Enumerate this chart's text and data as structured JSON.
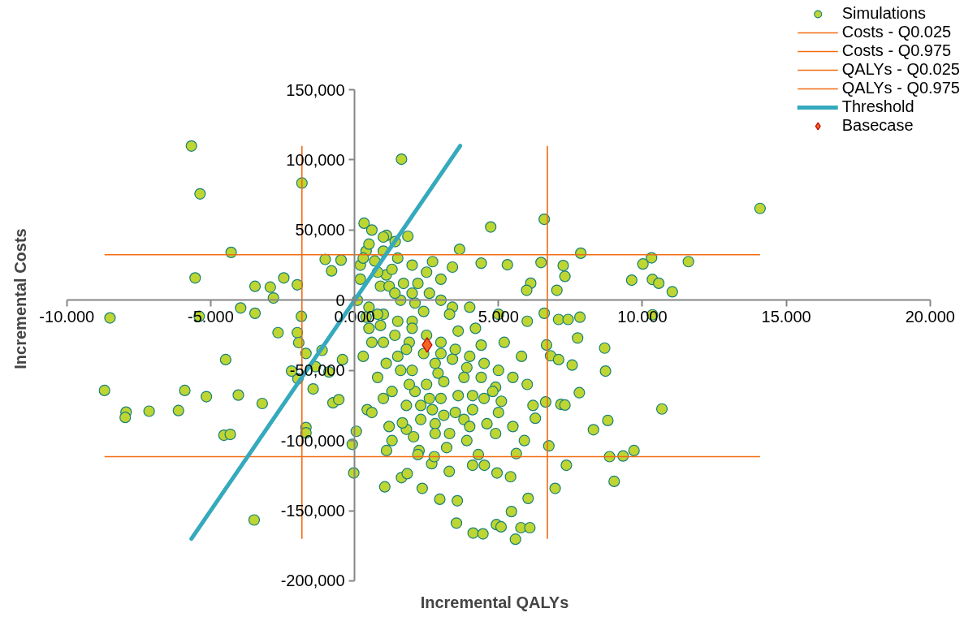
{
  "chart_data": {
    "type": "scatter",
    "xlabel": "Incremental QALYs",
    "ylabel": "Incremental Costs",
    "xlim": [
      -10,
      20
    ],
    "ylim": [
      -200000,
      150000
    ],
    "xticks": [
      {
        "value": -10,
        "label": "-10.000"
      },
      {
        "value": -5,
        "label": "-5.000"
      },
      {
        "value": 0,
        "label": "0.000"
      },
      {
        "value": 5,
        "label": "5.000"
      },
      {
        "value": 10,
        "label": "10.000"
      },
      {
        "value": 15,
        "label": "15.000"
      },
      {
        "value": 20,
        "label": "20.000"
      }
    ],
    "yticks": [
      {
        "value": -200000,
        "label": "-200,000"
      },
      {
        "value": -150000,
        "label": "-150,000"
      },
      {
        "value": -100000,
        "label": "-100,000"
      },
      {
        "value": -50000,
        "label": "-50,000"
      },
      0,
      {
        "value": 50000,
        "label": "50,000"
      },
      {
        "value": 100000,
        "label": "100,000"
      },
      {
        "value": 150000,
        "label": "150,000"
      }
    ],
    "grid": false,
    "legend": "top right",
    "series": [
      {
        "name": "Simulations",
        "marker": "circle",
        "color": "#bed532",
        "x": [
          0.2,
          0.4,
          0.7,
          0.9,
          1.1,
          1.3,
          1.7,
          2.1,
          2.6,
          3.4,
          0.4,
          0.9,
          1.4,
          1.9,
          2.4,
          2.9,
          3.4,
          3.9,
          4.4,
          4.9,
          0.6,
          1.1,
          1.6,
          2.1,
          2.6,
          3.1,
          3.6,
          4.1,
          4.6,
          5.1,
          1.3,
          1.8,
          2.3,
          2.8,
          3.3,
          3.8,
          4.3,
          1.0,
          2.0,
          3.0,
          -5.67,
          -5.37,
          -1.83,
          1.63,
          14.09,
          -5.54,
          -4.29,
          -5.4,
          -8.5,
          -3.96,
          -3.46,
          -3.46,
          -2.82,
          -2.46,
          -2.93,
          -1.99,
          -1.02,
          -0.47,
          -0.8,
          -8.69,
          -7.94,
          -7.97,
          -7.14,
          -6.12,
          -5.9,
          -5.15,
          -4.48,
          -4.04,
          -4.54,
          -4.32,
          -3.21,
          -3.49,
          -2.66,
          -1.99,
          -1.94,
          -1.97,
          -2.19,
          -1.85,
          -1.69,
          -1.69,
          -1.69,
          -1.44,
          -1.36,
          -0.75,
          -0.55,
          -0.89,
          -0.42,
          -1.13,
          -0.08,
          -0.03,
          0.06,
          0.44,
          1.11,
          1.05,
          1.63,
          1.66,
          2.05,
          2.24,
          1.83,
          2.35,
          2.68,
          2.96,
          3.57,
          3.29,
          2.77,
          3.54,
          4.12,
          4.46,
          4.1,
          4.51,
          4.95,
          4.93,
          5.09,
          5.45,
          5.59,
          5.78,
          6.09,
          6.03,
          5.42,
          5.62,
          6.28,
          6.97,
          6.75,
          7.36,
          7.17,
          7.31,
          6.64,
          7.56,
          7.81,
          8.3,
          8.8,
          8.72,
          8.69,
          8.86,
          9.02,
          9.33,
          9.71,
          10.68,
          7.75,
          6.67,
          6.81,
          7.09,
          6.59,
          7.09,
          7.42,
          7.83,
          7.86,
          7.25,
          7.31,
          7.03,
          6.59,
          6.48,
          6.12,
          5.98,
          5.31,
          4.73,
          4.4,
          3.65,
          3.4,
          2.71,
          10.35,
          9.63,
          10.02,
          10.32,
          10.57,
          11.04,
          11.6,
          10.35,
          1.11,
          0.33,
          1.85,
          1.41,
          0.3,
          0.5,
          1.0,
          1.5,
          2.0,
          2.5,
          3.0,
          0.2,
          0.8,
          1.2,
          2.0,
          3.0,
          4.0,
          5.0,
          6.0,
          0.1,
          0.5,
          1.0,
          1.5,
          2.0,
          2.5,
          3.0,
          3.5,
          4.0,
          4.5,
          5.0,
          5.5,
          6.0,
          0.5,
          1.0,
          1.5,
          2.0,
          2.5,
          3.0,
          3.5,
          4.0,
          0.3,
          0.8,
          1.3,
          1.8,
          2.3,
          2.8,
          4.5,
          5.0,
          5.5,
          5.2,
          4.2,
          3.3,
          4.8,
          3.8,
          2.8,
          1.8,
          0.8,
          1.6,
          2.4,
          3.6,
          4.4,
          5.8,
          6.2,
          5.9,
          3.2,
          2.2,
          1.2,
          0.6,
          1.9,
          3.1,
          4.1,
          2.7,
          3.9,
          4.9,
          1.4,
          2.2,
          1.0,
          0.6
        ],
        "values": [
          25000,
          35000,
          28000,
          10000,
          18000,
          22000,
          12000,
          -2000,
          5000,
          -5000,
          -12000,
          -18000,
          -25000,
          -30000,
          -38000,
          -52000,
          -42000,
          -48000,
          -55000,
          -62000,
          -30000,
          -45000,
          -50000,
          -65000,
          -70000,
          -82000,
          -68000,
          -78000,
          -88000,
          -72000,
          -100000,
          -92000,
          -75000,
          -88000,
          -95000,
          -85000,
          -110000,
          -70000,
          -15000,
          -38000,
          109900,
          75800,
          83500,
          100500,
          65400,
          15900,
          34100,
          -11500,
          -12600,
          -5500,
          9900,
          -9300,
          1600,
          15900,
          9300,
          11000,
          29100,
          28600,
          20900,
          -64300,
          -79700,
          -83500,
          -79100,
          -78600,
          -64300,
          -68700,
          -42300,
          -67600,
          -96200,
          -95600,
          -73600,
          -156600,
          -23100,
          -23100,
          -30200,
          -56000,
          -50500,
          -11500,
          -37900,
          -90700,
          -94500,
          -63200,
          -47300,
          -73100,
          -70900,
          -51100,
          -42300,
          -35700,
          -102700,
          -123100,
          -93400,
          -78000,
          -107100,
          -133000,
          -126400,
          -87400,
          -97300,
          -107100,
          -123600,
          -134100,
          -116500,
          -141800,
          -142900,
          -122000,
          -111500,
          -158800,
          -165900,
          -166500,
          -117600,
          -117600,
          -123100,
          -159900,
          -161500,
          -150600,
          -170300,
          -162100,
          -162100,
          -141200,
          -125800,
          -109300,
          -84100,
          -134100,
          -103800,
          -117600,
          -74200,
          -74700,
          -72500,
          -46200,
          -65900,
          -92300,
          -85700,
          -50500,
          -34100,
          -111500,
          -129100,
          -111000,
          -107100,
          -77500,
          -26900,
          -31900,
          -39600,
          -42300,
          -9300,
          -13700,
          -13700,
          -12100,
          33500,
          24700,
          17000,
          7100,
          57700,
          26900,
          12100,
          7100,
          25300,
          52200,
          26400,
          36300,
          23600,
          27500,
          14800,
          14300,
          25800,
          30200,
          12100,
          6000,
          27500,
          -10400,
          46200,
          54900,
          45600,
          41800,
          30000,
          40000,
          35000,
          30000,
          25000,
          20000,
          15000,
          15000,
          20000,
          10000,
          5000,
          0,
          -5000,
          -10000,
          -15000,
          0,
          -5000,
          -10000,
          -15000,
          -20000,
          -25000,
          -30000,
          -35000,
          -40000,
          -45000,
          -50000,
          -55000,
          -60000,
          -20000,
          -30000,
          -40000,
          -50000,
          -60000,
          -70000,
          -80000,
          -90000,
          -40000,
          -55000,
          -65000,
          -75000,
          -85000,
          -95000,
          -70000,
          -80000,
          -90000,
          -30000,
          -20000,
          -10000,
          -65000,
          -55000,
          -45000,
          -35000,
          -10000,
          0,
          -8000,
          -22000,
          -32000,
          -40000,
          -75000,
          -100000,
          -105000,
          -110000,
          -90000,
          -80000,
          -60000,
          -58000,
          -68000,
          -78000,
          -100000,
          -95000,
          5000,
          12000,
          45000,
          50000
        ]
      },
      {
        "name": "Costs - Q0.025",
        "type": "line",
        "color": "#f26c12",
        "x": [
          -8.69,
          14.09
        ],
        "values": [
          -111500,
          -111500
        ]
      },
      {
        "name": "Costs - Q0.975",
        "type": "line",
        "color": "#f26c12",
        "x": [
          -8.69,
          14.09
        ],
        "values": [
          32400,
          32400
        ]
      },
      {
        "name": "QALYs - Q0.025",
        "type": "line",
        "color": "#f26c12",
        "x": [
          -1.83,
          -1.83
        ],
        "values": [
          110000,
          -170000
        ]
      },
      {
        "name": "QALYs - Q0.975",
        "type": "line",
        "color": "#f26c12",
        "x": [
          6.7,
          6.7
        ],
        "values": [
          110000,
          -170000
        ]
      },
      {
        "name": "Threshold",
        "type": "line",
        "color": "#35a9bd",
        "x": [
          -5.67,
          3.67
        ],
        "values": [
          -170000,
          110000
        ]
      },
      {
        "name": "Basecase",
        "marker": "diamond",
        "color": "#f26522",
        "x": [
          2.52
        ],
        "values": [
          -31900
        ]
      }
    ]
  }
}
